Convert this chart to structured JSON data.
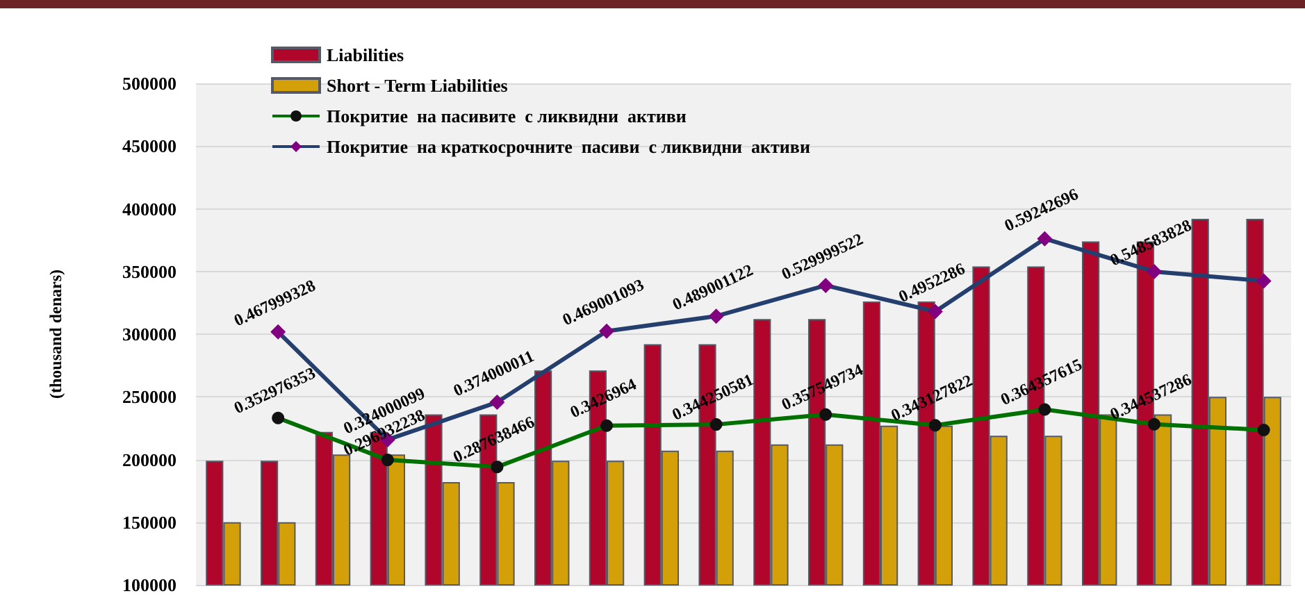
{
  "chart_data": {
    "type": "bar",
    "ylabel": "(thousand denars)",
    "categories": [
      null,
      null,
      null,
      null,
      null,
      null,
      null,
      null,
      null,
      null,
      null,
      null,
      null,
      null,
      null,
      null,
      null,
      null,
      null,
      null
    ],
    "ylim": [
      100000,
      500000
    ],
    "yticks": [
      100000,
      150000,
      200000,
      250000,
      300000,
      350000,
      400000,
      450000,
      500000
    ],
    "y2lim": [
      0.13,
      0.8
    ],
    "grid": "y",
    "legend": "top left",
    "series": [
      {
        "name": "Liabilities",
        "color": "#b0062c",
        "values": [
          199000,
          199000,
          222000,
          222000,
          236000,
          236000,
          271000,
          271000,
          292000,
          292000,
          312000,
          312000,
          326000,
          326000,
          354000,
          354000,
          374000,
          374000,
          392000,
          392000
        ]
      },
      {
        "name": "Short - Term Liabilities",
        "color": "#d4a00a",
        "values": [
          150000,
          150000,
          204000,
          204000,
          182000,
          182000,
          199000,
          199000,
          207000,
          207000,
          212000,
          212000,
          227000,
          227000,
          219000,
          219000,
          236000,
          236000,
          250000,
          250000
        ]
      },
      {
        "name": "Покритие  на пасивите  с ликвидни  активи",
        "type": "line",
        "axis": "y2",
        "color": "#007000",
        "marker": "circle",
        "values": [
          null,
          0.352976353,
          null,
          0.296932238,
          null,
          0.287638466,
          null,
          0.3426964,
          null,
          0.344250581,
          null,
          0.357549734,
          null,
          0.343127822,
          null,
          0.364357615,
          null,
          0.344537286,
          null,
          0.337
        ],
        "value_labels": [
          null,
          "0.352976353",
          null,
          "0.296932238",
          null,
          "0.287638466",
          null,
          "0.3426964",
          null,
          "0.344250581",
          null,
          "0.357549734",
          null,
          "0.343127822",
          null,
          "0.364357615",
          null,
          "0.344537286",
          null,
          null
        ]
      },
      {
        "name": "Покритие  на краткосрочните  пасиви  с ликвидни  активи",
        "type": "line",
        "axis": "y2",
        "color": "#243f6e",
        "marker": "diamond",
        "values": [
          null,
          0.467999328,
          null,
          0.324000099,
          null,
          0.374000011,
          null,
          0.469001093,
          null,
          0.489001122,
          null,
          0.529999522,
          null,
          0.4952286,
          null,
          0.59242696,
          null,
          0.548583828,
          null,
          0.536
        ],
        "value_labels": [
          null,
          "0.467999328",
          null,
          "0.324000099",
          null,
          "0.374000011",
          null,
          "0.469001093",
          null,
          "0.489001122",
          null,
          "0.529999522",
          null,
          "0.4952286",
          null,
          "0.59242696",
          null,
          "0.548583828",
          null,
          null
        ]
      }
    ]
  }
}
